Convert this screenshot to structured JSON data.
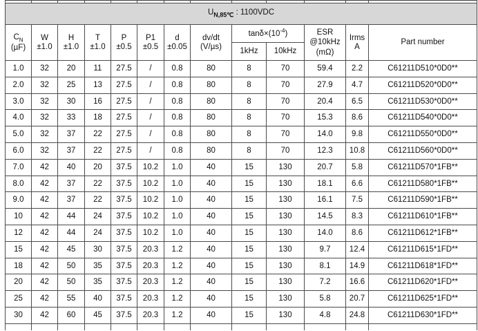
{
  "band": {
    "u_prefix": "U",
    "u_sub": "N,85℃",
    "u_suffix": " : 1100VDC"
  },
  "table": {
    "headers": {
      "cn": {
        "line1_main": "C",
        "line1_sub": "N",
        "line2": "(µF)"
      },
      "w": {
        "line1": "W",
        "line2": "±1.0"
      },
      "h": {
        "line1": "H",
        "line2": "±1.0"
      },
      "t": {
        "line1": "T",
        "line2": "±1.0"
      },
      "p": {
        "line1": "P",
        "line2": "±0.5"
      },
      "p1": {
        "line1": "P1",
        "line2": "±0.5"
      },
      "d": {
        "line1": "d",
        "line2": "±0.05"
      },
      "dvdt": {
        "line1": "dv/dt",
        "line2": "(V/µs)"
      },
      "tand": {
        "prefix": "tanδ×(10",
        "sup": "-4",
        "suffix": ")"
      },
      "freq1": "1kHz",
      "freq2": "10kHz",
      "esr": {
        "line1": "ESR",
        "line2": "@10kHz",
        "line3": "(mΩ)"
      },
      "irms": {
        "line1": "Irms",
        "line2": "A"
      },
      "part": "Part number"
    },
    "column_keys": [
      "cn",
      "w",
      "h",
      "t",
      "p",
      "p1",
      "d",
      "dvdt",
      "tan-1khz",
      "tan-10khz",
      "esr",
      "irms",
      "part-number"
    ],
    "rows": [
      [
        "1.0",
        "32",
        "20",
        "11",
        "27.5",
        "/",
        "0.8",
        "80",
        "8",
        "70",
        "59.4",
        "2.2",
        "C61211D510*0D0**"
      ],
      [
        "2.0",
        "32",
        "25",
        "13",
        "27.5",
        "/",
        "0.8",
        "80",
        "8",
        "70",
        "27.9",
        "4.7",
        "C61211D520*0D0**"
      ],
      [
        "3.0",
        "32",
        "30",
        "16",
        "27.5",
        "/",
        "0.8",
        "80",
        "8",
        "70",
        "20.4",
        "6.5",
        "C61211D530*0D0**"
      ],
      [
        "4.0",
        "32",
        "33",
        "18",
        "27.5",
        "/",
        "0.8",
        "80",
        "8",
        "70",
        "15.3",
        "8.6",
        "C61211D540*0D0**"
      ],
      [
        "5.0",
        "32",
        "37",
        "22",
        "27.5",
        "/",
        "0.8",
        "80",
        "8",
        "70",
        "14.0",
        "9.8",
        "C61211D550*0D0**"
      ],
      [
        "6.0",
        "32",
        "37",
        "22",
        "27.5",
        "/",
        "0.8",
        "80",
        "8",
        "70",
        "12.3",
        "10.8",
        "C61211D560*0D0**"
      ],
      [
        "7.0",
        "42",
        "40",
        "20",
        "37.5",
        "10.2",
        "1.0",
        "40",
        "15",
        "130",
        "20.7",
        "5.8",
        "C61211D570*1FB**"
      ],
      [
        "8.0",
        "42",
        "37",
        "22",
        "37.5",
        "10.2",
        "1.0",
        "40",
        "15",
        "130",
        "18.1",
        "6.6",
        "C61211D580*1FB**"
      ],
      [
        "9.0",
        "42",
        "37",
        "22",
        "37.5",
        "10.2",
        "1.0",
        "40",
        "15",
        "130",
        "16.1",
        "7.5",
        "C61211D590*1FB**"
      ],
      [
        "10",
        "42",
        "44",
        "24",
        "37.5",
        "10.2",
        "1.0",
        "40",
        "15",
        "130",
        "14.5",
        "8.3",
        "C61211D610*1FB**"
      ],
      [
        "12",
        "42",
        "44",
        "24",
        "37.5",
        "10.2",
        "1.0",
        "40",
        "15",
        "130",
        "14.0",
        "8.6",
        "C61211D612*1FB**"
      ],
      [
        "15",
        "42",
        "45",
        "30",
        "37.5",
        "20.3",
        "1.2",
        "40",
        "15",
        "130",
        "9.7",
        "12.4",
        "C61211D615*1FD**"
      ],
      [
        "18",
        "42",
        "50",
        "35",
        "37.5",
        "20.3",
        "1.2",
        "40",
        "15",
        "130",
        "8.1",
        "14.9",
        "C61211D618*1FD**"
      ],
      [
        "20",
        "42",
        "50",
        "35",
        "37.5",
        "20.3",
        "1.2",
        "40",
        "15",
        "130",
        "7.2",
        "16.6",
        "C61211D620*1FD**"
      ],
      [
        "25",
        "42",
        "55",
        "40",
        "37.5",
        "20.3",
        "1.2",
        "40",
        "15",
        "130",
        "5.8",
        "20.7",
        "C61211D625*1FD**"
      ],
      [
        "30",
        "42",
        "60",
        "45",
        "37.5",
        "20.3",
        "1.2",
        "40",
        "15",
        "130",
        "4.8",
        "24.8",
        "C61211D630*1FD**"
      ]
    ]
  }
}
